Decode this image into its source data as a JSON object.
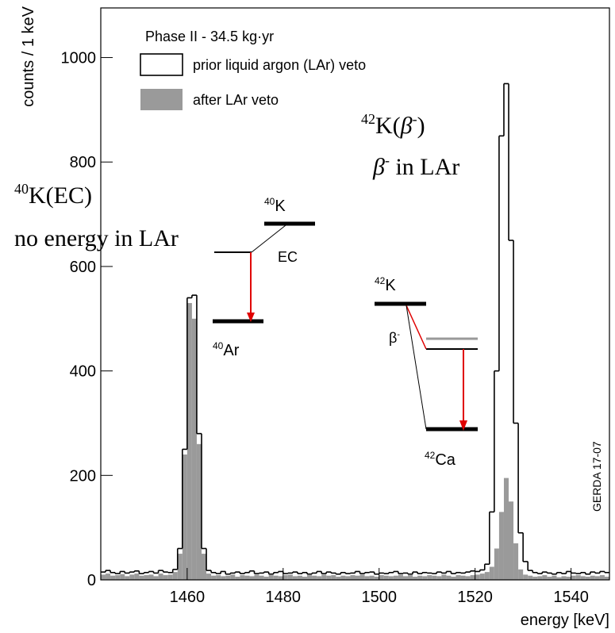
{
  "chart_data": {
    "type": "histogram",
    "x_label": "energy [keV]",
    "y_label": "counts / 1 keV",
    "legend_title": "Phase II - 34.5 kg·yr",
    "xlim": [
      1442,
      1548
    ],
    "ylim": [
      0,
      1095
    ],
    "xticks": [
      1460,
      1480,
      1500,
      1520,
      1540
    ],
    "yticks": [
      0,
      200,
      400,
      600,
      800,
      1000
    ],
    "legend": "upper left",
    "bins": [
      1442,
      1443,
      1444,
      1445,
      1446,
      1447,
      1448,
      1449,
      1450,
      1451,
      1452,
      1453,
      1454,
      1455,
      1456,
      1457,
      1458,
      1459,
      1460,
      1461,
      1462,
      1463,
      1464,
      1465,
      1466,
      1467,
      1468,
      1469,
      1470,
      1471,
      1472,
      1473,
      1474,
      1475,
      1476,
      1477,
      1478,
      1479,
      1480,
      1481,
      1482,
      1483,
      1484,
      1485,
      1486,
      1487,
      1488,
      1489,
      1490,
      1491,
      1492,
      1493,
      1494,
      1495,
      1496,
      1497,
      1498,
      1499,
      1500,
      1501,
      1502,
      1503,
      1504,
      1505,
      1506,
      1507,
      1508,
      1509,
      1510,
      1511,
      1512,
      1513,
      1514,
      1515,
      1516,
      1517,
      1518,
      1519,
      1520,
      1521,
      1522,
      1523,
      1524,
      1525,
      1526,
      1527,
      1528,
      1529,
      1530,
      1531,
      1532,
      1533,
      1534,
      1535,
      1536,
      1537,
      1538,
      1539,
      1540,
      1541,
      1542,
      1543,
      1544,
      1545,
      1546,
      1547,
      1548
    ],
    "series": [
      {
        "name": "prior liquid argon (LAr) veto",
        "style": "outline",
        "color": "#000000",
        "values": [
          15,
          18,
          14,
          12,
          16,
          13,
          15,
          17,
          12,
          14,
          16,
          13,
          18,
          15,
          14,
          20,
          60,
          250,
          540,
          545,
          280,
          60,
          18,
          14,
          12,
          16,
          11,
          13,
          15,
          12,
          14,
          17,
          12,
          13,
          15,
          11,
          14,
          16,
          12,
          13,
          15,
          12,
          14,
          11,
          13,
          16,
          12,
          15,
          13,
          11,
          14,
          12,
          13,
          16,
          12,
          14,
          15,
          11,
          13,
          12,
          14,
          16,
          12,
          13,
          11,
          15,
          12,
          14,
          13,
          12,
          15,
          13,
          16,
          12,
          14,
          13,
          15,
          17,
          16,
          19,
          30,
          130,
          400,
          850,
          950,
          650,
          300,
          90,
          35,
          18,
          14,
          12,
          15,
          13,
          11,
          14,
          12,
          16,
          13,
          12,
          14,
          11,
          15,
          13,
          16,
          14
        ]
      },
      {
        "name": "after LAr veto",
        "style": "fill",
        "color": "#9a9a9a",
        "values": [
          10,
          12,
          8,
          9,
          11,
          7,
          10,
          12,
          8,
          9,
          10,
          7,
          12,
          9,
          10,
          15,
          50,
          240,
          530,
          500,
          260,
          50,
          12,
          8,
          9,
          7,
          8,
          10,
          6,
          9,
          8,
          7,
          10,
          8,
          6,
          9,
          8,
          7,
          9,
          10,
          7,
          8,
          6,
          9,
          8,
          7,
          10,
          8,
          9,
          6,
          8,
          7,
          9,
          8,
          10,
          7,
          8,
          6,
          9,
          8,
          7,
          8,
          10,
          7,
          9,
          6,
          8,
          7,
          9,
          8,
          7,
          10,
          8,
          6,
          9,
          8,
          7,
          9,
          10,
          12,
          15,
          25,
          60,
          130,
          195,
          150,
          70,
          20,
          10,
          8,
          6,
          7,
          9,
          6,
          8,
          5,
          7,
          6,
          8,
          9,
          7,
          6,
          8,
          7,
          9,
          6
        ]
      }
    ],
    "annotations": [
      {
        "color": "#1a1aff",
        "parts": [
          {
            "text": "42",
            "sup": true
          },
          {
            "text": "K("
          },
          {
            "text": "β",
            "italic": true
          },
          {
            "text": "-",
            "sup": true
          },
          {
            "text": ")"
          }
        ]
      },
      {
        "color": "#1a1aff",
        "parts": [
          {
            "text": "β",
            "italic": true
          },
          {
            "text": "-",
            "sup": true
          },
          {
            "text": " in LAr"
          }
        ]
      },
      {
        "color": "#1a1aff",
        "parts": [
          {
            "text": "40",
            "sup": true
          },
          {
            "text": "K(EC)"
          }
        ]
      },
      {
        "color": "#1a1aff",
        "parts": [
          {
            "text": "no energy in LAr"
          }
        ]
      },
      {
        "color": "#000000",
        "parts": [
          {
            "text": "40",
            "sup": true
          },
          {
            "text": "K"
          }
        ]
      },
      {
        "color": "#000000",
        "parts": [
          {
            "text": "EC"
          }
        ]
      },
      {
        "color": "#000000",
        "parts": [
          {
            "text": "40",
            "sup": true
          },
          {
            "text": "Ar"
          }
        ]
      },
      {
        "color": "#000000",
        "parts": [
          {
            "text": "42",
            "sup": true
          },
          {
            "text": "K"
          }
        ]
      },
      {
        "color": "#000000",
        "parts": [
          {
            "text": "β"
          },
          {
            "text": "-",
            "sup": true
          }
        ]
      },
      {
        "color": "#000000",
        "parts": [
          {
            "text": "42",
            "sup": true
          },
          {
            "text": "Ca"
          }
        ]
      },
      {
        "color": "#000000",
        "parts": [
          {
            "text": "GERDA 17-07"
          }
        ]
      }
    ]
  }
}
